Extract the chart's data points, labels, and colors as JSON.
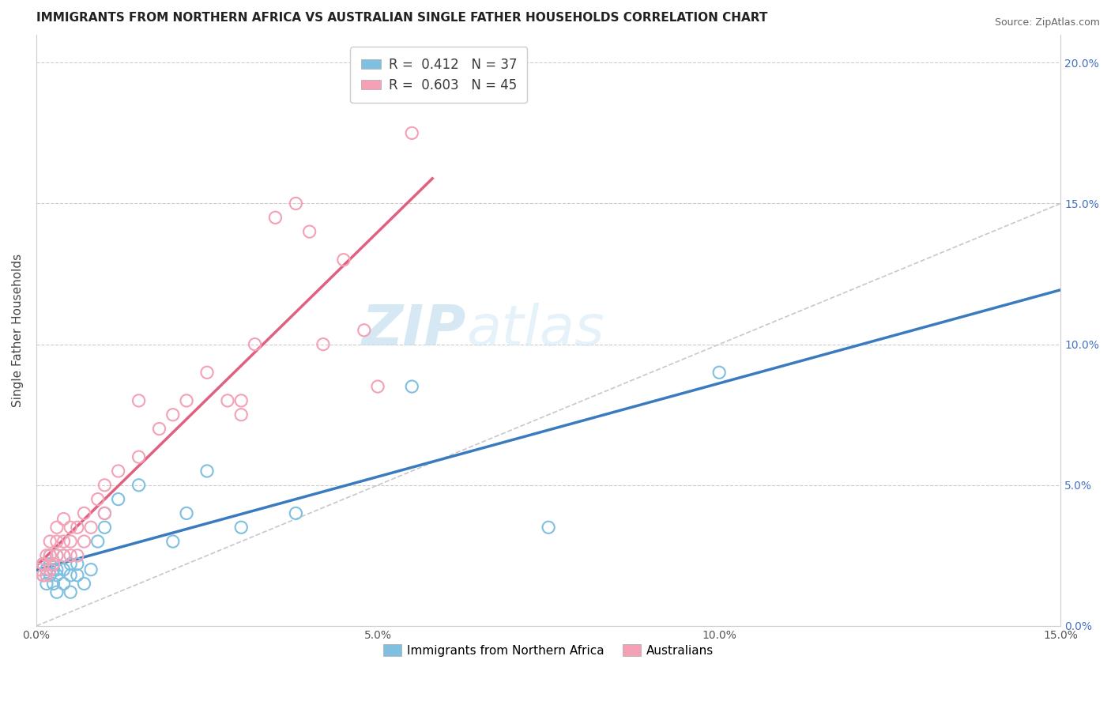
{
  "title": "IMMIGRANTS FROM NORTHERN AFRICA VS AUSTRALIAN SINGLE FATHER HOUSEHOLDS CORRELATION CHART",
  "source": "Source: ZipAtlas.com",
  "ylabel": "Single Father Households",
  "xlim": [
    0.0,
    0.15
  ],
  "ylim": [
    0.0,
    0.21
  ],
  "xticks": [
    0.0,
    0.05,
    0.1,
    0.15
  ],
  "yticks": [
    0.0,
    0.05,
    0.1,
    0.15,
    0.2
  ],
  "blue_color": "#7fbfdf",
  "pink_color": "#f4a0b5",
  "blue_line_color": "#3a7abf",
  "pink_line_color": "#e06080",
  "diag_color": "#c8c8c8",
  "blue_scatter_x": [
    0.0005,
    0.001,
    0.001,
    0.0015,
    0.0015,
    0.002,
    0.002,
    0.002,
    0.0025,
    0.0025,
    0.003,
    0.003,
    0.003,
    0.003,
    0.004,
    0.004,
    0.004,
    0.005,
    0.005,
    0.005,
    0.006,
    0.006,
    0.007,
    0.008,
    0.009,
    0.01,
    0.01,
    0.012,
    0.015,
    0.02,
    0.022,
    0.025,
    0.03,
    0.038,
    0.055,
    0.075,
    0.1
  ],
  "blue_scatter_y": [
    0.02,
    0.018,
    0.022,
    0.015,
    0.02,
    0.018,
    0.022,
    0.025,
    0.015,
    0.02,
    0.012,
    0.018,
    0.02,
    0.025,
    0.015,
    0.02,
    0.025,
    0.012,
    0.018,
    0.022,
    0.018,
    0.022,
    0.015,
    0.02,
    0.03,
    0.035,
    0.04,
    0.045,
    0.05,
    0.03,
    0.04,
    0.055,
    0.035,
    0.04,
    0.085,
    0.035,
    0.09
  ],
  "pink_scatter_x": [
    0.0005,
    0.001,
    0.001,
    0.0015,
    0.0015,
    0.002,
    0.002,
    0.002,
    0.0025,
    0.003,
    0.003,
    0.003,
    0.004,
    0.004,
    0.004,
    0.005,
    0.005,
    0.005,
    0.006,
    0.006,
    0.007,
    0.007,
    0.008,
    0.009,
    0.01,
    0.01,
    0.012,
    0.015,
    0.015,
    0.018,
    0.02,
    0.022,
    0.025,
    0.028,
    0.03,
    0.03,
    0.032,
    0.035,
    0.038,
    0.04,
    0.042,
    0.045,
    0.048,
    0.05,
    0.055
  ],
  "pink_scatter_y": [
    0.02,
    0.018,
    0.022,
    0.018,
    0.025,
    0.02,
    0.025,
    0.03,
    0.022,
    0.025,
    0.03,
    0.035,
    0.025,
    0.03,
    0.038,
    0.025,
    0.03,
    0.035,
    0.025,
    0.035,
    0.03,
    0.04,
    0.035,
    0.045,
    0.04,
    0.05,
    0.055,
    0.06,
    0.08,
    0.07,
    0.075,
    0.08,
    0.09,
    0.08,
    0.075,
    0.08,
    0.1,
    0.145,
    0.15,
    0.14,
    0.1,
    0.13,
    0.105,
    0.085,
    0.175
  ]
}
